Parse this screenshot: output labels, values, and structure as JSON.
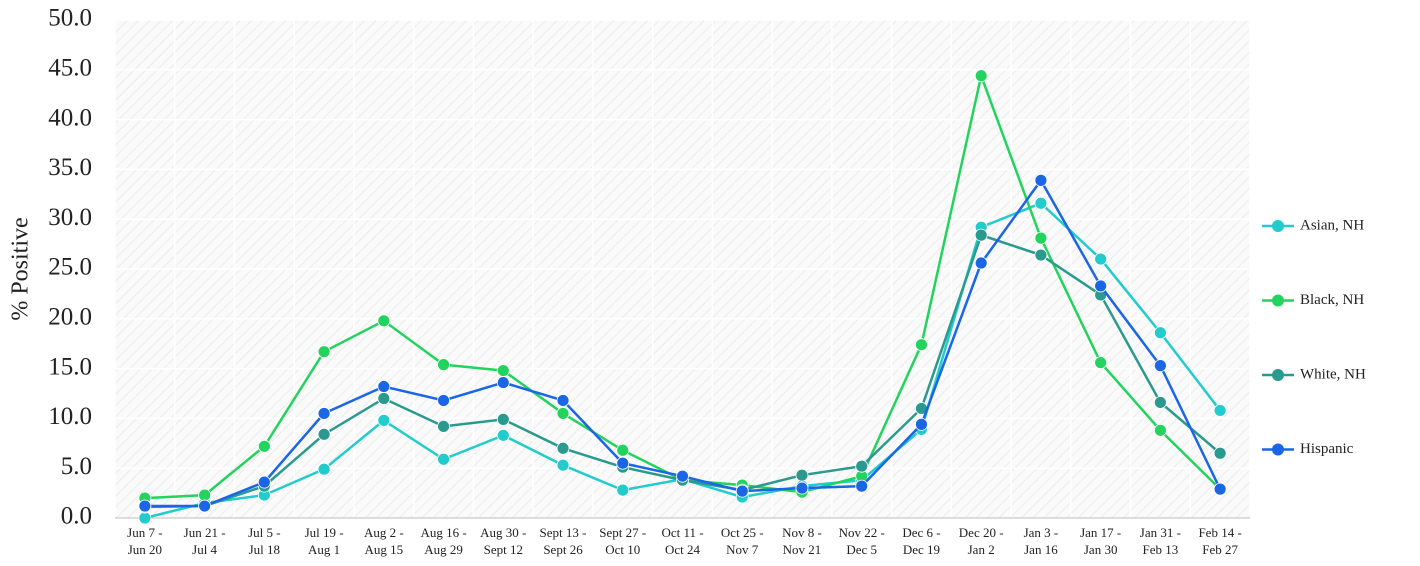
{
  "chart_data": {
    "type": "line",
    "y_label": "% Positive",
    "categories": [
      "Jun 7 - Jun 20",
      "Jun 21 - Jul 4",
      "Jul 5 - Jul 18",
      "Jul 19 - Aug 1",
      "Aug 2 - Aug 15",
      "Aug 16 - Aug 29",
      "Aug 30 - Sept 12",
      "Sept 13 - Sept 26",
      "Sept 27 - Oct 10",
      "Oct 11 - Oct 24",
      "Oct 25 - Nov 7",
      "Nov 8 - Nov 21",
      "Nov 22 - Dec 5",
      "Dec 6 - Dec 19",
      "Dec 20 - Jan 2",
      "Jan 3 - Jan 16",
      "Jan 17 - Jan 30",
      "Jan 31 - Feb 13",
      "Feb 14 - Feb 27"
    ],
    "series": [
      {
        "name": "Asian, NH",
        "color": "#22cccc",
        "values": [
          0.0,
          1.5,
          2.3,
          4.9,
          9.8,
          5.9,
          8.3,
          5.3,
          2.8,
          3.9,
          2.1,
          3.2,
          3.8,
          8.9,
          29.2,
          31.6,
          26.0,
          18.6,
          10.8
        ]
      },
      {
        "name": "Black, NH",
        "color": "#22d45e",
        "values": [
          2.0,
          2.3,
          7.2,
          16.7,
          19.8,
          15.4,
          14.8,
          10.5,
          6.8,
          3.8,
          3.3,
          2.6,
          4.2,
          17.4,
          44.4,
          28.1,
          15.6,
          8.8,
          2.9
        ]
      },
      {
        "name": "White, NH",
        "color": "#2a9a8e",
        "values": [
          1.1,
          1.2,
          3.2,
          8.4,
          12.0,
          9.2,
          9.9,
          7.0,
          5.1,
          3.8,
          2.8,
          4.3,
          5.2,
          11.0,
          28.4,
          26.4,
          22.4,
          11.6,
          6.5
        ]
      },
      {
        "name": "Hispanic",
        "color": "#1a66e6",
        "values": [
          1.2,
          1.2,
          3.6,
          10.5,
          13.2,
          11.8,
          13.6,
          11.8,
          5.5,
          4.2,
          2.7,
          3.0,
          3.2,
          9.4,
          25.6,
          33.9,
          23.3,
          15.3,
          2.9
        ]
      }
    ],
    "ylim": [
      0,
      50
    ],
    "yticks": [
      {
        "value": 0,
        "label": "0.0"
      },
      {
        "value": 5,
        "label": "5.0"
      },
      {
        "value": 10,
        "label": "10.0"
      },
      {
        "value": 15,
        "label": "15.0"
      },
      {
        "value": 20,
        "label": "20.0"
      },
      {
        "value": 25,
        "label": "25.0"
      },
      {
        "value": 30,
        "label": "30.0"
      },
      {
        "value": 35,
        "label": "35.0"
      },
      {
        "value": 40,
        "label": "40.0"
      },
      {
        "value": 45,
        "label": "45.0"
      },
      {
        "value": 50,
        "label": "50.0"
      }
    ],
    "grid": true,
    "legend": "right"
  }
}
